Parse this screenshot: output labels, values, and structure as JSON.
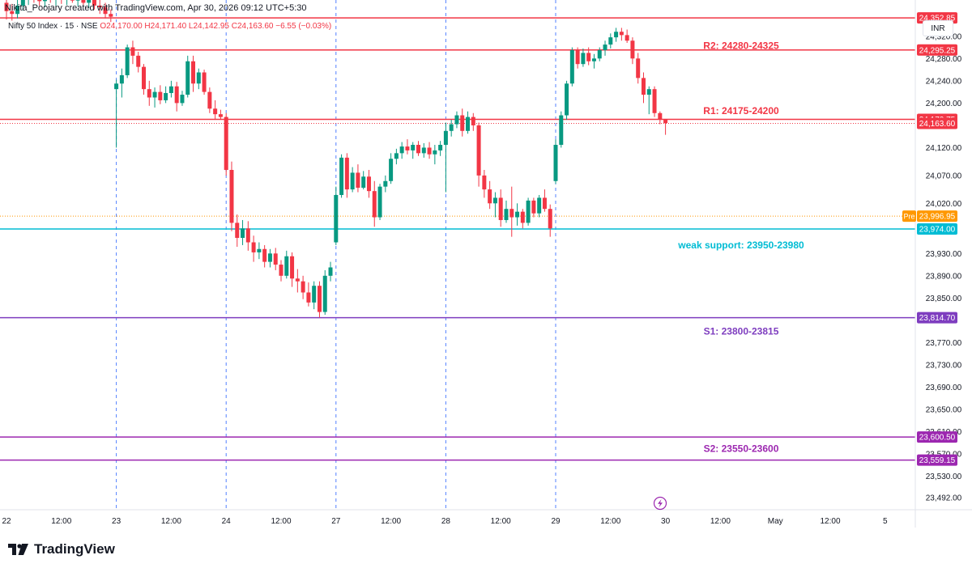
{
  "header": {
    "credit": "Nikita_Poojary created with TradingView.com, Apr 30, 2026 09:12 UTC+5:30",
    "symbol": "Nifty 50 Index · 15 · NSE",
    "ohlc": "O24,170.00  H24,171.40  L24,142.95  C24,163.60  −6.55 (−0.03%)"
  },
  "currency": "INR",
  "brand": "TradingView",
  "colors": {
    "up": "#089981",
    "down": "#f23645",
    "resistance": "#f23645",
    "support_weak": "#00bcd4",
    "support": "#7e3dbf",
    "s2": "#9c27b0",
    "pre": "#ff9800",
    "grid": "#2962ff"
  },
  "chart_data": {
    "type": "candlestick",
    "y_axis": {
      "min": 23470,
      "max": 24385,
      "ticks": [
        "24,320.00",
        "24,280.00",
        "24,240.00",
        "24,200.00",
        "24,120.00",
        "24,070.00",
        "24,020.00",
        "23,930.00",
        "23,890.00",
        "23,850.00",
        "23,770.00",
        "23,730.00",
        "23,690.00",
        "23,650.00",
        "23,610.00",
        "23,570.00",
        "23,530.00",
        "23,492.00"
      ]
    },
    "x_axis": {
      "labels": [
        {
          "label": "22",
          "bar": 0
        },
        {
          "label": "12:00",
          "bar": 10
        },
        {
          "label": "23",
          "bar": 20
        },
        {
          "label": "12:00",
          "bar": 30
        },
        {
          "label": "24",
          "bar": 40
        },
        {
          "label": "12:00",
          "bar": 50
        },
        {
          "label": "27",
          "bar": 60
        },
        {
          "label": "12:00",
          "bar": 70
        },
        {
          "label": "28",
          "bar": 80
        },
        {
          "label": "12:00",
          "bar": 90
        },
        {
          "label": "29",
          "bar": 100
        },
        {
          "label": "12:00",
          "bar": 110
        },
        {
          "label": "30",
          "bar": 120
        },
        {
          "label": "12:00",
          "bar": 130
        },
        {
          "label": "May",
          "bar": 140
        },
        {
          "label": "12:00",
          "bar": 150
        },
        {
          "label": "5",
          "bar": 160
        }
      ],
      "session_breaks": [
        20,
        40,
        60,
        80,
        100
      ]
    },
    "levels": [
      {
        "price": 24352.85,
        "tag": "24,352.85",
        "color": "#f23645",
        "label": "R2: 24280-24325",
        "label_price": 24303,
        "style": "solid"
      },
      {
        "price": 24295.25,
        "tag": "24,295.25",
        "color": "#f23645",
        "label": "",
        "style": "solid"
      },
      {
        "price": 24170.75,
        "tag": "24,170.75",
        "color": "#f23645",
        "label": "R1: 24175-24200",
        "label_price": 24186,
        "style": "solid"
      },
      {
        "price": 24163.6,
        "tag": "24,163.60",
        "color": "#f23645",
        "label": "",
        "style": "dotted"
      },
      {
        "price": 23996.95,
        "tag": "23,996.95",
        "color": "#ff9800",
        "label": "",
        "style": "dotted",
        "prefix": "Pre"
      },
      {
        "price": 23974.0,
        "tag": "23,974.00",
        "color": "#00bcd4",
        "label": "weak support: 23950-23980",
        "label_price": 23945,
        "style": "solid"
      },
      {
        "price": 23814.7,
        "tag": "23,814.70",
        "color": "#7e3dbf",
        "label": "S1: 23800-23815",
        "label_price": 23790,
        "style": "solid"
      },
      {
        "price": 23600.5,
        "tag": "23,600.50",
        "color": "#9c27b0",
        "label": "",
        "style": "solid"
      },
      {
        "price": 23559.15,
        "tag": "23,559.15",
        "color": "#9c27b0",
        "label": "S2: 23550-23600",
        "label_price": 23580,
        "style": "solid"
      }
    ],
    "candles": [
      [
        24380,
        24390,
        24350,
        24365
      ],
      [
        24365,
        24378,
        24348,
        24360
      ],
      [
        24360,
        24385,
        24352,
        24375
      ],
      [
        24375,
        24395,
        24366,
        24385
      ],
      [
        24385,
        24398,
        24376,
        24392
      ],
      [
        24392,
        24400,
        24380,
        24388
      ],
      [
        24388,
        24400,
        24375,
        24383
      ],
      [
        24383,
        24398,
        24372,
        24392
      ],
      [
        24392,
        24400,
        24380,
        24385
      ],
      [
        24385,
        24398,
        24375,
        24390
      ],
      [
        24390,
        24398,
        24378,
        24386
      ],
      [
        24386,
        24396,
        24376,
        24392
      ],
      [
        24392,
        24400,
        24380,
        24384
      ],
      [
        24384,
        24396,
        24374,
        24388
      ],
      [
        24388,
        24398,
        24376,
        24380
      ],
      [
        24380,
        24395,
        24370,
        24385
      ],
      [
        24385,
        24392,
        24368,
        24375
      ],
      [
        24375,
        24385,
        24360,
        24372
      ],
      [
        24372,
        24380,
        24352,
        24360
      ],
      [
        24360,
        24368,
        24345,
        24355
      ],
      [
        24225,
        24242,
        24120,
        24235
      ],
      [
        24235,
        24262,
        24210,
        24250
      ],
      [
        24250,
        24305,
        24245,
        24300
      ],
      [
        24300,
        24312,
        24270,
        24285
      ],
      [
        24285,
        24292,
        24255,
        24265
      ],
      [
        24265,
        24270,
        24215,
        24225
      ],
      [
        24225,
        24240,
        24195,
        24210
      ],
      [
        24210,
        24228,
        24192,
        24220
      ],
      [
        24220,
        24232,
        24198,
        24205
      ],
      [
        24205,
        24230,
        24200,
        24218
      ],
      [
        24218,
        24240,
        24210,
        24230
      ],
      [
        24230,
        24238,
        24185,
        24200
      ],
      [
        24200,
        24222,
        24195,
        24215
      ],
      [
        24215,
        24285,
        24210,
        24275
      ],
      [
        24275,
        24285,
        24220,
        24235
      ],
      [
        24235,
        24262,
        24225,
        24255
      ],
      [
        24255,
        24260,
        24215,
        24220
      ],
      [
        24220,
        24228,
        24182,
        24190
      ],
      [
        24190,
        24205,
        24170,
        24180
      ],
      [
        24180,
        24188,
        24170,
        24175
      ],
      [
        24175,
        24182,
        24070,
        24080
      ],
      [
        24080,
        24095,
        23970,
        23985
      ],
      [
        23985,
        24000,
        23942,
        23958
      ],
      [
        23958,
        23990,
        23945,
        23975
      ],
      [
        23975,
        23988,
        23935,
        23950
      ],
      [
        23950,
        23962,
        23915,
        23932
      ],
      [
        23932,
        23950,
        23920,
        23938
      ],
      [
        23938,
        23945,
        23905,
        23915
      ],
      [
        23915,
        23938,
        23905,
        23930
      ],
      [
        23930,
        23940,
        23900,
        23910
      ],
      [
        23910,
        23918,
        23880,
        23890
      ],
      [
        23890,
        23935,
        23885,
        23925
      ],
      [
        23925,
        23932,
        23870,
        23885
      ],
      [
        23885,
        23902,
        23860,
        23880
      ],
      [
        23880,
        23890,
        23848,
        23860
      ],
      [
        23860,
        23878,
        23835,
        23842
      ],
      [
        23842,
        23880,
        23830,
        23872
      ],
      [
        23872,
        23880,
        23815,
        23825
      ],
      [
        23825,
        23900,
        23820,
        23890
      ],
      [
        23890,
        23915,
        23880,
        23905
      ],
      [
        23950,
        24050,
        23945,
        24035
      ],
      [
        24035,
        24108,
        24030,
        24102
      ],
      [
        24102,
        24110,
        24030,
        24045
      ],
      [
        24045,
        24085,
        24040,
        24075
      ],
      [
        24075,
        24090,
        24040,
        24048
      ],
      [
        24048,
        24078,
        24045,
        24068
      ],
      [
        24068,
        24080,
        24030,
        24042
      ],
      [
        24042,
        24060,
        23978,
        23995
      ],
      [
        23995,
        24055,
        23990,
        24050
      ],
      [
        24050,
        24070,
        24040,
        24060
      ],
      [
        24060,
        24110,
        24055,
        24100
      ],
      [
        24100,
        24118,
        24090,
        24110
      ],
      [
        24110,
        24130,
        24100,
        24122
      ],
      [
        24122,
        24135,
        24108,
        24115
      ],
      [
        24115,
        24130,
        24100,
        24125
      ],
      [
        24125,
        24132,
        24105,
        24110
      ],
      [
        24110,
        24128,
        24102,
        24120
      ],
      [
        24120,
        24130,
        24100,
        24108
      ],
      [
        24108,
        24125,
        24090,
        24115
      ],
      [
        24115,
        24132,
        24105,
        24125
      ],
      [
        24125,
        24165,
        24040,
        24150
      ],
      [
        24150,
        24170,
        24140,
        24162
      ],
      [
        24162,
        24185,
        24155,
        24178
      ],
      [
        24178,
        24190,
        24140,
        24150
      ],
      [
        24150,
        24185,
        24145,
        24175
      ],
      [
        24175,
        24182,
        24150,
        24160
      ],
      [
        24160,
        24165,
        24050,
        24070
      ],
      [
        24070,
        24080,
        24030,
        24045
      ],
      [
        24045,
        24060,
        24010,
        24020
      ],
      [
        24020,
        24040,
        23995,
        24030
      ],
      [
        24030,
        24045,
        23978,
        23990
      ],
      [
        23990,
        24025,
        23985,
        24010
      ],
      [
        24010,
        24050,
        23960,
        23995
      ],
      [
        23995,
        24020,
        23980,
        24005
      ],
      [
        24005,
        24010,
        23975,
        23985
      ],
      [
        23985,
        24030,
        23980,
        24025
      ],
      [
        24025,
        24030,
        23995,
        24002
      ],
      [
        24002,
        24035,
        23995,
        24030
      ],
      [
        24030,
        24045,
        24005,
        24010
      ],
      [
        24010,
        24018,
        23960,
        23975
      ],
      [
        24060,
        24135,
        24055,
        24125
      ],
      [
        24125,
        24185,
        24120,
        24178
      ],
      [
        24178,
        24240,
        24170,
        24235
      ],
      [
        24235,
        24300,
        24230,
        24295
      ],
      [
        24295,
        24300,
        24262,
        24270
      ],
      [
        24270,
        24298,
        24265,
        24290
      ],
      [
        24290,
        24300,
        24268,
        24275
      ],
      [
        24275,
        24288,
        24262,
        24280
      ],
      [
        24280,
        24300,
        24275,
        24295
      ],
      [
        24295,
        24312,
        24285,
        24305
      ],
      [
        24305,
        24325,
        24298,
        24318
      ],
      [
        24318,
        24335,
        24310,
        24328
      ],
      [
        24328,
        24335,
        24312,
        24322
      ],
      [
        24322,
        24332,
        24308,
        24312
      ],
      [
        24312,
        24318,
        24270,
        24280
      ],
      [
        24280,
        24290,
        24235,
        24245
      ],
      [
        24245,
        24255,
        24200,
        24215
      ],
      [
        24215,
        24230,
        24180,
        24225
      ],
      [
        24225,
        24230,
        24175,
        24182
      ],
      [
        24182,
        24185,
        24162,
        24170
      ],
      [
        24170,
        24171,
        24143,
        24164
      ]
    ]
  }
}
